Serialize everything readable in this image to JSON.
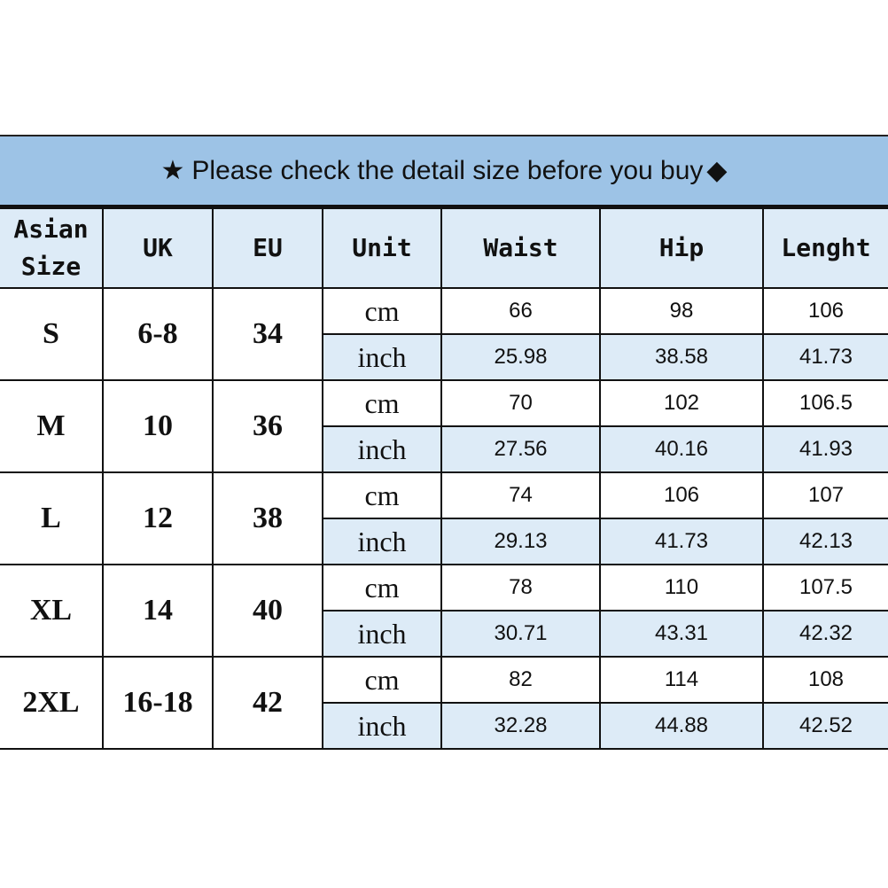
{
  "banner": {
    "star": "★",
    "text": "Please check the detail size before you buy",
    "diamond": "◆"
  },
  "headers": [
    "Asian Size",
    "UK",
    "EU",
    "Unit",
    "Waist",
    "Hip",
    "Lenght"
  ],
  "header_asian_line1": "Asian",
  "header_asian_line2": "Size",
  "rows": [
    {
      "asian": "S",
      "uk": "6-8",
      "eu": "34",
      "cm": {
        "unit": "cm",
        "waist": "66",
        "hip": "98",
        "length": "106"
      },
      "inch": {
        "unit": "inch",
        "waist": "25.98",
        "hip": "38.58",
        "length": "41.73"
      }
    },
    {
      "asian": "M",
      "uk": "10",
      "eu": "36",
      "cm": {
        "unit": "cm",
        "waist": "70",
        "hip": "102",
        "length": "106.5"
      },
      "inch": {
        "unit": "inch",
        "waist": "27.56",
        "hip": "40.16",
        "length": "41.93"
      }
    },
    {
      "asian": "L",
      "uk": "12",
      "eu": "38",
      "cm": {
        "unit": "cm",
        "waist": "74",
        "hip": "106",
        "length": "107"
      },
      "inch": {
        "unit": "inch",
        "waist": "29.13",
        "hip": "41.73",
        "length": "42.13"
      }
    },
    {
      "asian": "XL",
      "uk": "14",
      "eu": "40",
      "cm": {
        "unit": "cm",
        "waist": "78",
        "hip": "110",
        "length": "107.5"
      },
      "inch": {
        "unit": "inch",
        "waist": "30.71",
        "hip": "43.31",
        "length": "42.32"
      }
    },
    {
      "asian": "2XL",
      "uk": "16-18",
      "eu": "42",
      "cm": {
        "unit": "cm",
        "waist": "82",
        "hip": "114",
        "length": "108"
      },
      "inch": {
        "unit": "inch",
        "waist": "32.28",
        "hip": "44.88",
        "length": "42.52"
      }
    }
  ],
  "colors": {
    "banner": "#9dc3e6",
    "header": "#ddebf7",
    "inch_row": "#ddebf7"
  }
}
